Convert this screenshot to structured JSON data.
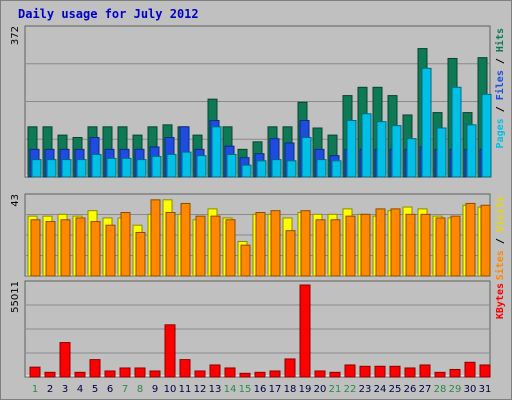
{
  "chart_data": [
    {
      "type": "bar",
      "title": "Daily usage for July 2012",
      "categories": [
        "1",
        "2",
        "3",
        "4",
        "5",
        "6",
        "7",
        "8",
        "9",
        "10",
        "11",
        "12",
        "13",
        "14",
        "15",
        "16",
        "17",
        "18",
        "19",
        "20",
        "21",
        "22",
        "23",
        "24",
        "25",
        "26",
        "27",
        "28",
        "29",
        "30",
        "31"
      ],
      "weekend_categories": [
        "1",
        "7",
        "8",
        "14",
        "15",
        "21",
        "22",
        "28",
        "29"
      ],
      "ymax_label": "372",
      "ylim": [
        0,
        372
      ],
      "legend": [
        {
          "text": "Pages",
          "color": "#00c0e8"
        },
        {
          "text": "Files",
          "color": "#1f4ce0"
        },
        {
          "text": "Hits",
          "color": "#0d7a55"
        }
      ],
      "legend_separator": " / ",
      "series": [
        {
          "name": "Hits",
          "color": "#0d7a55",
          "values": [
            127,
            127,
            106,
            100,
            127,
            127,
            127,
            106,
            127,
            132,
            127,
            106,
            197,
            127,
            70,
            89,
            127,
            127,
            189,
            124,
            106,
            206,
            227,
            227,
            206,
            157,
            325,
            163,
            300,
            163,
            302
          ]
        },
        {
          "name": "Files",
          "color": "#1f4ce0",
          "values": [
            70,
            70,
            70,
            70,
            100,
            70,
            70,
            70,
            76,
            100,
            127,
            70,
            143,
            78,
            49,
            59,
            97,
            86,
            143,
            70,
            54,
            70,
            70,
            70,
            70,
            70,
            76,
            70,
            70,
            70,
            70
          ]
        },
        {
          "name": "Pages",
          "color": "#00c0e8",
          "values": [
            44,
            44,
            44,
            44,
            57,
            47,
            47,
            44,
            52,
            57,
            63,
            54,
            127,
            57,
            30,
            41,
            44,
            41,
            100,
            44,
            41,
            143,
            160,
            140,
            130,
            97,
            275,
            124,
            227,
            132,
            209
          ]
        }
      ]
    },
    {
      "type": "bar",
      "categories": [
        "1",
        "2",
        "3",
        "4",
        "5",
        "6",
        "7",
        "8",
        "9",
        "10",
        "11",
        "12",
        "13",
        "14",
        "15",
        "16",
        "17",
        "18",
        "19",
        "20",
        "21",
        "22",
        "23",
        "24",
        "25",
        "26",
        "27",
        "28",
        "29",
        "30",
        "31"
      ],
      "ymax_label": "43",
      "ylim": [
        0,
        43
      ],
      "legend": [
        {
          "text": "Sites",
          "color": "#ff8800"
        },
        {
          "text": "Visits",
          "color": "#e8d800"
        }
      ],
      "legend_separator": " / ",
      "series": [
        {
          "name": "Visits",
          "color": "#ffff00",
          "values": [
            33,
            33,
            34,
            33,
            36,
            32,
            32,
            28,
            34,
            42,
            34,
            31,
            37,
            32,
            19,
            34,
            34,
            32,
            35,
            34,
            34,
            37,
            34,
            33,
            36,
            38,
            37,
            33,
            32,
            39,
            38
          ]
        },
        {
          "name": "Sites",
          "color": "#ff8800",
          "values": [
            31,
            30,
            31,
            32,
            30,
            28,
            35,
            24,
            42,
            35,
            40,
            33,
            33,
            31,
            17,
            35,
            36,
            25,
            36,
            31,
            31,
            33,
            34,
            37,
            37,
            34,
            34,
            32,
            33,
            40,
            39
          ]
        }
      ]
    },
    {
      "type": "bar",
      "categories": [
        "1",
        "2",
        "3",
        "4",
        "5",
        "6",
        "7",
        "8",
        "9",
        "10",
        "11",
        "12",
        "13",
        "14",
        "15",
        "16",
        "17",
        "18",
        "19",
        "20",
        "21",
        "22",
        "23",
        "24",
        "25",
        "26",
        "27",
        "28",
        "29",
        "30",
        "31"
      ],
      "ymax_label": "55011",
      "ylim": [
        0,
        55011
      ],
      "legend": [
        {
          "text": "KBytes",
          "color": "#ff0000"
        }
      ],
      "legend_separator": " / ",
      "series": [
        {
          "name": "KBytes",
          "color": "#ff0000",
          "values": [
            5900,
            2800,
            20600,
            2800,
            10400,
            3600,
            5400,
            5400,
            3600,
            31200,
            10400,
            3600,
            7200,
            5400,
            2200,
            2800,
            3600,
            10800,
            55011,
            3600,
            2800,
            7200,
            6400,
            6400,
            6400,
            5400,
            7200,
            2800,
            4500,
            8800,
            7200
          ]
        }
      ]
    }
  ]
}
